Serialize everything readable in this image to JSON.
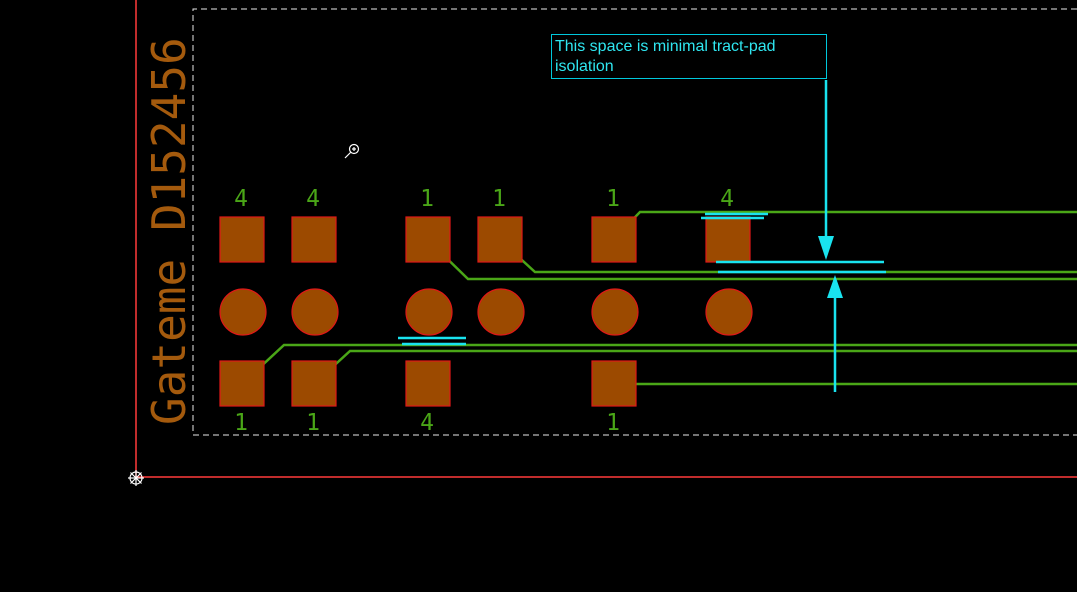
{
  "board_text": "Gateme D152456",
  "annotation": "This space is minimal tract-pad isolation",
  "top_pad_labels": [
    "4",
    "4",
    "1",
    "1",
    "1",
    "4"
  ],
  "bottom_pad_labels": [
    "1",
    "1",
    "4",
    "1"
  ],
  "colors": {
    "background": "#000000",
    "pad": "#9c4a00",
    "pad_outline": "#e01818",
    "track": "#4aa617",
    "label": "#4aa617",
    "silkscreen": "#a45a0d",
    "board_edge": "#ff3b3b",
    "annotation": "#19e3ef",
    "outline_dashed": "#e8e8e8"
  },
  "icons": [
    "zoom-cursor-icon",
    "origin-crosshair-icon"
  ]
}
